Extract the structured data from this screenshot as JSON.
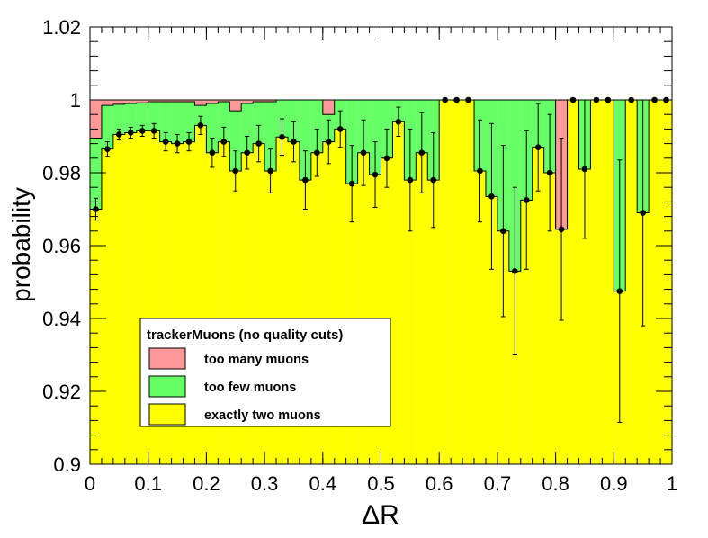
{
  "chart_data": {
    "type": "area",
    "xlabel": "ΔR",
    "ylabel": "probability",
    "xlim": [
      0,
      1
    ],
    "ylim": [
      0.9,
      1.02
    ],
    "x_ticks": [
      0,
      0.1,
      0.2,
      0.3,
      0.4,
      0.5,
      0.6,
      0.7,
      0.8,
      0.9,
      1
    ],
    "x_tick_labels": [
      "0",
      "0.1",
      "0.2",
      "0.3",
      "0.4",
      "0.5",
      "0.6",
      "0.7",
      "0.8",
      "0.9",
      "1"
    ],
    "y_ticks": [
      0.9,
      0.92,
      0.94,
      0.96,
      0.98,
      1,
      1.02
    ],
    "y_tick_labels": [
      "0.9",
      "0.92",
      "0.94",
      "0.96",
      "0.98",
      "1",
      "1.02"
    ],
    "bin_width": 0.02,
    "bin_centers": [
      0.01,
      0.03,
      0.05,
      0.07,
      0.09,
      0.11,
      0.13,
      0.15,
      0.17,
      0.19,
      0.21,
      0.23,
      0.25,
      0.27,
      0.29,
      0.31,
      0.33,
      0.35,
      0.37,
      0.39,
      0.41,
      0.43,
      0.45,
      0.47,
      0.49,
      0.51,
      0.53,
      0.55,
      0.57,
      0.59,
      0.61,
      0.63,
      0.65,
      0.67,
      0.69,
      0.71,
      0.73,
      0.75,
      0.77,
      0.79,
      0.81,
      0.83,
      0.85,
      0.87,
      0.89,
      0.91,
      0.93,
      0.95,
      0.97,
      0.99
    ],
    "series": [
      {
        "name": "exactly two muons",
        "color": "#ffff00",
        "values": [
          0.97,
          0.9865,
          0.9905,
          0.991,
          0.9915,
          0.9915,
          0.9885,
          0.988,
          0.9885,
          0.993,
          0.9855,
          0.9885,
          0.9805,
          0.9855,
          0.988,
          0.9805,
          0.9898,
          0.9885,
          0.978,
          0.9855,
          0.9885,
          0.992,
          0.977,
          0.9855,
          0.9795,
          0.984,
          0.994,
          0.978,
          0.9855,
          0.978,
          1.0,
          1.0,
          1.0,
          0.9805,
          0.9735,
          0.964,
          0.953,
          0.9725,
          0.987,
          0.98,
          0.9645,
          1.0,
          0.981,
          1.0,
          1.0,
          0.9475,
          1.0,
          0.969,
          1.0,
          1.0
        ],
        "errors": [
          0.003,
          0.002,
          0.0015,
          0.0015,
          0.0015,
          0.002,
          0.0025,
          0.0025,
          0.0025,
          0.0025,
          0.004,
          0.004,
          0.0055,
          0.0045,
          0.005,
          0.006,
          0.005,
          0.0055,
          0.008,
          0.0065,
          0.006,
          0.005,
          0.0105,
          0.009,
          0.009,
          0.008,
          0.004,
          0.014,
          0.011,
          0.013,
          0,
          0,
          0,
          0.014,
          0.02,
          0.0235,
          0.023,
          0.019,
          0.012,
          0.016,
          0.025,
          0,
          0.019,
          0,
          0,
          0.036,
          0,
          0.031,
          0,
          0
        ]
      },
      {
        "name": "too few muons",
        "color": "#66ff66",
        "top": [
          0.9895,
          0.9985,
          0.9988,
          0.999,
          0.9992,
          0.9995,
          0.9995,
          0.9995,
          0.9995,
          0.9985,
          0.999,
          0.9995,
          0.997,
          0.999,
          0.9995,
          0.9995,
          1.0,
          1.0,
          1.0,
          1.0,
          0.996,
          1.0,
          1.0,
          1.0,
          1.0,
          1.0,
          1.0,
          1.0,
          1.0,
          1.0,
          1.0,
          1.0,
          1.0,
          1.0,
          1.0,
          1.0,
          1.0,
          1.0,
          1.0,
          1.0,
          0.9645,
          1.0,
          1.0,
          1.0,
          1.0,
          1.0,
          1.0,
          1.0,
          1.0,
          1.0
        ]
      },
      {
        "name": "too many muons",
        "color": "#ff9999",
        "top": [
          1.0,
          1.0,
          1.0,
          1.0,
          1.0,
          1.0,
          1.0,
          1.0,
          1.0,
          1.0,
          1.0,
          1.0,
          1.0,
          1.0,
          1.0,
          1.0,
          1.0,
          1.0,
          1.0,
          1.0,
          1.0,
          1.0,
          1.0,
          1.0,
          1.0,
          1.0,
          1.0,
          1.0,
          1.0,
          1.0,
          1.0,
          1.0,
          1.0,
          1.0,
          1.0,
          1.0,
          1.0,
          1.0,
          1.0,
          1.0,
          1.0,
          1.0,
          1.0,
          1.0,
          1.0,
          1.0,
          1.0,
          1.0,
          1.0,
          1.0
        ]
      }
    ],
    "legend": {
      "title": "trackerMuons (no quality cuts)",
      "entries": [
        {
          "label": "too many muons",
          "color": "#ff9999"
        },
        {
          "label": "too few muons",
          "color": "#66ff66"
        },
        {
          "label": "exactly two muons",
          "color": "#ffff00"
        }
      ],
      "placement": "lower-left"
    },
    "grid": false
  }
}
